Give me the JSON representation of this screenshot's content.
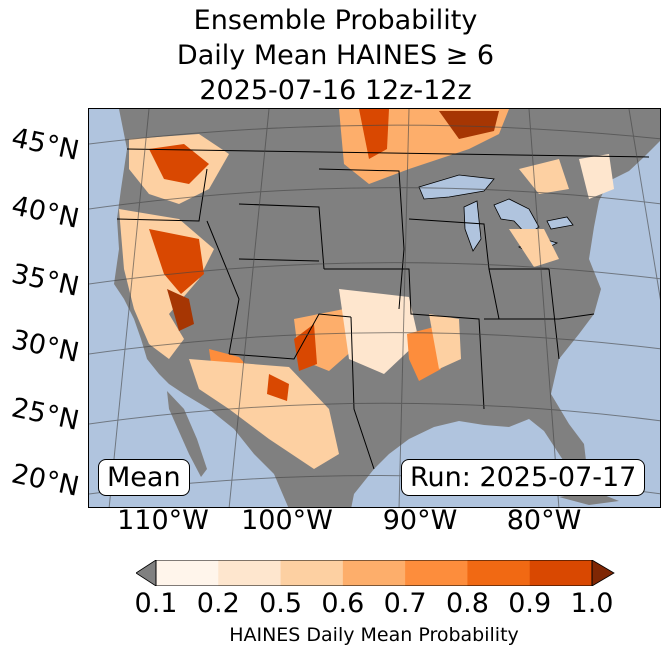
{
  "title": {
    "line1": "Ensemble Probability",
    "line2": "Daily Mean HAINES ≥ 6",
    "line3": "2025-07-16 12z-12z"
  },
  "map": {
    "latitude_labels": [
      "45°N",
      "40°N",
      "35°N",
      "30°N",
      "25°N",
      "20°N"
    ],
    "longitude_labels": [
      "110°W",
      "100°W",
      "90°W",
      "80°W"
    ],
    "stat_box": "Mean",
    "run_box": "Run: 2025-07-17",
    "colors": {
      "ocean": "#b0c4de",
      "land_below_threshold": "#808080",
      "lakes": "#b0c4de",
      "borders": "#000000",
      "graticule": "#444444"
    }
  },
  "colorbar": {
    "ticks": [
      "0.1",
      "0.2",
      "0.5",
      "0.6",
      "0.7",
      "0.8",
      "0.9",
      "1.0"
    ],
    "colors": [
      "#fff5eb",
      "#fee6ce",
      "#fdd0a2",
      "#fdae6b",
      "#fd8d3c",
      "#f16913",
      "#d94801",
      "#a63603"
    ],
    "under_color": "#808080",
    "label": "HAINES Daily Mean Probability"
  }
}
